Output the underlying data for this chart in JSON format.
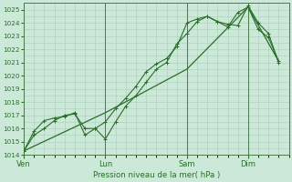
{
  "xlabel": "Pression niveau de la mer( hPa )",
  "bg_color": "#cce8d8",
  "grid_color": "#aaceba",
  "line_color": "#2a6e2a",
  "ylim": [
    1014,
    1025.5
  ],
  "yticks": [
    1014,
    1015,
    1016,
    1017,
    1018,
    1019,
    1020,
    1021,
    1022,
    1023,
    1024,
    1025
  ],
  "xtick_labels": [
    "Ven",
    "Lun",
    "Sam",
    "Dim"
  ],
  "xtick_positions": [
    0,
    8,
    16,
    22
  ],
  "xmax": 26,
  "vlines": [
    0,
    8,
    16,
    22
  ],
  "series1_x": [
    0,
    1,
    2,
    3,
    4,
    5,
    6,
    7,
    8,
    9,
    10,
    11,
    12,
    13,
    14,
    15,
    16,
    17,
    18,
    19,
    20,
    21,
    22,
    23,
    24,
    25
  ],
  "series1_y": [
    1014.3,
    1015.5,
    1016.0,
    1016.6,
    1017.0,
    1017.1,
    1016.0,
    1016.0,
    1016.5,
    1017.5,
    1018.3,
    1019.2,
    1020.3,
    1020.9,
    1021.3,
    1022.2,
    1024.0,
    1024.3,
    1024.5,
    1024.1,
    1023.7,
    1024.8,
    1025.2,
    1023.5,
    1022.9,
    1021.1
  ],
  "series2_x": [
    0,
    1,
    2,
    3,
    4,
    5,
    6,
    7,
    8,
    9,
    10,
    11,
    12,
    13,
    14,
    15,
    16,
    17,
    18,
    19,
    20,
    21,
    22,
    23,
    24,
    25
  ],
  "series2_y": [
    1014.3,
    1015.8,
    1016.6,
    1016.8,
    1016.9,
    1017.2,
    1015.5,
    1016.0,
    1015.2,
    1016.5,
    1017.7,
    1018.5,
    1019.5,
    1020.5,
    1021.0,
    1022.4,
    1023.2,
    1024.1,
    1024.5,
    1024.1,
    1023.9,
    1023.8,
    1025.3,
    1024.0,
    1023.2,
    1021.0
  ],
  "series3_x": [
    0,
    8,
    16,
    22,
    25
  ],
  "series3_y": [
    1014.3,
    1017.2,
    1020.5,
    1025.2,
    1021.1
  ]
}
